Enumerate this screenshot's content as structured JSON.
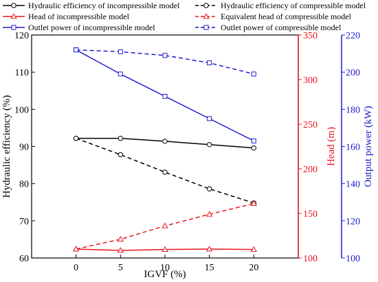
{
  "chart_data": {
    "type": "line",
    "xlabel": "IGVF (%)",
    "x": [
      0,
      5,
      10,
      15,
      20
    ],
    "xlim": [
      -5,
      25
    ],
    "xticks": [
      0,
      5,
      10,
      15,
      20
    ],
    "axes": [
      {
        "id": "left",
        "label": "Hydraulic efficiency (%)",
        "ylim": [
          60,
          120
        ],
        "ticks": [
          60,
          70,
          80,
          90,
          100,
          110,
          120
        ],
        "color": "#000000"
      },
      {
        "id": "right1",
        "label": "Head (m)",
        "ylim": [
          100,
          350
        ],
        "ticks": [
          100,
          150,
          200,
          250,
          300,
          350
        ],
        "color": "#e8141d"
      },
      {
        "id": "right2",
        "label": "Output power (kW)",
        "ylim": [
          100,
          220
        ],
        "ticks": [
          100,
          120,
          140,
          160,
          180,
          200,
          220
        ],
        "color": "#1c1ccc"
      }
    ],
    "series": [
      {
        "name": "Hydraulic efficiency of incompressible model",
        "axis": "left",
        "color": "#000000",
        "dash": false,
        "marker": "circle",
        "values": [
          92.2,
          92.2,
          91.4,
          90.5,
          89.6
        ]
      },
      {
        "name": "Hydraulic efficiency of compressible model",
        "axis": "left",
        "color": "#000000",
        "dash": true,
        "marker": "circle",
        "values": [
          92.2,
          87.8,
          83.1,
          78.6,
          74.8
        ]
      },
      {
        "name": "Head of incompressible model",
        "axis": "right1",
        "color": "#e8141d",
        "dash": false,
        "marker": "triangle",
        "values": [
          110,
          108.5,
          109.5,
          110,
          109.5
        ]
      },
      {
        "name": "Equivalent head of compressible model",
        "axis": "right1",
        "color": "#e8141d",
        "dash": true,
        "marker": "triangle",
        "values": [
          110,
          121,
          136,
          149,
          161
        ]
      },
      {
        "name": "Outlet power of incompressible model",
        "axis": "right2",
        "color": "#1c1ccc",
        "dash": false,
        "marker": "square",
        "values": [
          212,
          199,
          187,
          175,
          163
        ]
      },
      {
        "name": "Outlet power of compressible model",
        "axis": "right2",
        "color": "#1c1ccc",
        "dash": true,
        "marker": "square",
        "values": [
          212,
          211,
          209,
          205,
          199
        ]
      }
    ],
    "legend_position": "top"
  }
}
